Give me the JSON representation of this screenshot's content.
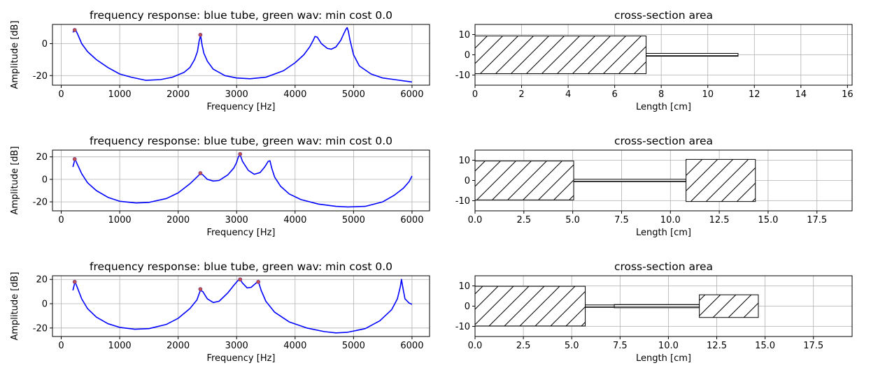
{
  "chart_data": [
    {
      "type": "line",
      "title": "frequency response: blue tube, green wav: min cost 0.0",
      "xlabel": "Frequency [Hz]",
      "ylabel": "Amplitude [dB]",
      "xlim": [
        -150,
        6300
      ],
      "ylim": [
        -26,
        12
      ],
      "xticks": [
        0,
        1000,
        2000,
        3000,
        4000,
        5000,
        6000
      ],
      "yticks": [
        -20,
        0
      ],
      "grid": true,
      "line_color": "#0000ff",
      "marker_color": "#c0504d",
      "series": [
        {
          "x": [
            200,
            240,
            280,
            350,
            450,
            600,
            800,
            1000,
            1200,
            1450,
            1700,
            1900,
            2100,
            2200,
            2280,
            2330,
            2360,
            2385,
            2410,
            2440,
            2500,
            2600,
            2800,
            3000,
            3230,
            3500,
            3800,
            4000,
            4150,
            4250,
            4310,
            4340,
            4380,
            4450,
            4550,
            4620,
            4700,
            4780,
            4830,
            4870,
            4890,
            4910,
            4940,
            5000,
            5100,
            5300,
            5500,
            5700,
            5900,
            6000
          ],
          "y": [
            7,
            9,
            6,
            0,
            -5,
            -10,
            -15,
            -19,
            -21,
            -23,
            -22.5,
            -21,
            -18,
            -15,
            -10,
            -5,
            2,
            5,
            -1,
            -6,
            -11,
            -16,
            -20,
            -21.5,
            -22,
            -21,
            -17,
            -12,
            -7,
            -2,
            2,
            4.5,
            4,
            0,
            -3,
            -3.5,
            -2,
            2,
            6,
            9,
            10,
            8,
            2,
            -7,
            -14,
            -19,
            -21.5,
            -22.5,
            -23.5,
            -24
          ]
        }
      ],
      "markers": {
        "x": [
          230,
          2380
        ],
        "y": [
          8.5,
          5.5
        ]
      }
    },
    {
      "type": "bar",
      "title": "cross-section area",
      "xlabel": "Length [cm]",
      "ylabel": "",
      "xlim": [
        0,
        16.2
      ],
      "ylim": [
        -15,
        15
      ],
      "xticks": [
        0,
        2,
        4,
        6,
        8,
        10,
        12,
        14,
        16
      ],
      "yticks": [
        -10,
        0,
        10
      ],
      "grid": true,
      "segments": [
        {
          "x0": 0,
          "x1": 7.35,
          "half_height": 9.3,
          "hatch": "/"
        },
        {
          "x0": 7.35,
          "x1": 11.3,
          "half_height": 0.7,
          "hatch": "-"
        }
      ]
    },
    {
      "type": "line",
      "title": "frequency response: blue tube, green wav: min cost 0.0",
      "xlabel": "Frequency [Hz]",
      "ylabel": "Amplitude [dB]",
      "xlim": [
        -150,
        6300
      ],
      "ylim": [
        -28,
        26
      ],
      "xticks": [
        0,
        1000,
        2000,
        3000,
        4000,
        5000,
        6000
      ],
      "yticks": [
        -20,
        0,
        20
      ],
      "grid": true,
      "line_color": "#0000ff",
      "marker_color": "#c0504d",
      "series": [
        {
          "x": [
            200,
            235,
            270,
            350,
            450,
            600,
            800,
            1000,
            1280,
            1500,
            1800,
            2000,
            2200,
            2320,
            2380,
            2420,
            2500,
            2600,
            2700,
            2850,
            2950,
            3000,
            3030,
            3060,
            3100,
            3200,
            3300,
            3400,
            3480,
            3540,
            3570,
            3600,
            3650,
            3750,
            3900,
            4100,
            4400,
            4700,
            4900,
            5200,
            5500,
            5700,
            5850,
            5950,
            6000
          ],
          "y": [
            11,
            18,
            14,
            5,
            -3,
            -10,
            -16,
            -19.5,
            -21,
            -20.5,
            -17,
            -12,
            -4,
            2,
            5,
            4,
            0,
            -1.5,
            -1,
            4,
            10,
            15,
            20,
            22,
            16,
            8,
            4.5,
            6,
            11,
            16,
            16.5,
            10,
            2,
            -6,
            -13,
            -18,
            -22,
            -24,
            -24.5,
            -24,
            -20,
            -14,
            -8,
            -2,
            3
          ]
        }
      ],
      "markers": {
        "x": [
          230,
          2380,
          3060
        ],
        "y": [
          18,
          5.5,
          22.5
        ]
      }
    },
    {
      "type": "bar",
      "title": "cross-section area",
      "xlabel": "Length [cm]",
      "ylabel": "",
      "xlim": [
        0,
        19.3
      ],
      "ylim": [
        -15,
        15
      ],
      "xticks": [
        0.0,
        2.5,
        5.0,
        7.5,
        10.0,
        12.5,
        15.0,
        17.5
      ],
      "yticks": [
        -10,
        0,
        10
      ],
      "grid": true,
      "segments": [
        {
          "x0": 0,
          "x1": 5.05,
          "half_height": 9.6,
          "hatch": "/"
        },
        {
          "x0": 5.05,
          "x1": 10.8,
          "half_height": 0.6,
          "hatch": "-"
        },
        {
          "x0": 10.8,
          "x1": 14.35,
          "half_height": 10.4,
          "hatch": "/"
        }
      ]
    },
    {
      "type": "line",
      "title": "frequency response: blue tube, green wav: min cost 0.0",
      "xlabel": "Frequency [Hz]",
      "ylabel": "Amplitude [dB]",
      "xlim": [
        -150,
        6300
      ],
      "ylim": [
        -27,
        23
      ],
      "xticks": [
        0,
        1000,
        2000,
        3000,
        4000,
        5000,
        6000
      ],
      "yticks": [
        -20,
        0,
        20
      ],
      "grid": true,
      "line_color": "#0000ff",
      "marker_color": "#c0504d",
      "series": [
        {
          "x": [
            200,
            235,
            270,
            350,
            450,
            600,
            800,
            1000,
            1260,
            1500,
            1800,
            2000,
            2200,
            2320,
            2380,
            2420,
            2500,
            2600,
            2700,
            2850,
            2950,
            3020,
            3060,
            3100,
            3180,
            3250,
            3320,
            3360,
            3380,
            3420,
            3500,
            3650,
            3900,
            4200,
            4500,
            4700,
            4900,
            5200,
            5450,
            5650,
            5750,
            5800,
            5820,
            5840,
            5880,
            5950,
            6000
          ],
          "y": [
            11,
            18,
            14,
            4,
            -4,
            -11,
            -16.5,
            -19.5,
            -21,
            -20.5,
            -17,
            -12,
            -4,
            3,
            11,
            10,
            4,
            1,
            2,
            9,
            15,
            19,
            20,
            17,
            13,
            13.5,
            16.5,
            18,
            17,
            11,
            2,
            -7,
            -15,
            -20,
            -23,
            -24,
            -23.5,
            -20.5,
            -14,
            -5,
            4,
            14,
            20,
            14,
            4,
            0.5,
            -0.5
          ]
        }
      ],
      "markers": {
        "x": [
          230,
          2380,
          3060,
          3370
        ],
        "y": [
          18,
          12,
          20,
          18
        ]
      }
    },
    {
      "type": "bar",
      "title": "cross-section area",
      "xlabel": "Length [cm]",
      "ylabel": "",
      "xlim": [
        0,
        19.5
      ],
      "ylim": [
        -15,
        15
      ],
      "xticks": [
        0.0,
        2.5,
        5.0,
        7.5,
        10.0,
        12.5,
        15.0,
        17.5
      ],
      "yticks": [
        -10,
        0,
        10
      ],
      "grid": true,
      "segments": [
        {
          "x0": 0,
          "x1": 5.7,
          "half_height": 9.8,
          "hatch": "/"
        },
        {
          "x0": 5.7,
          "x1": 7.2,
          "half_height": 0.6,
          "hatch": "-"
        },
        {
          "x0": 7.2,
          "x1": 11.6,
          "half_height": 0.8,
          "hatch": "-"
        },
        {
          "x0": 11.6,
          "x1": 14.65,
          "half_height": 5.6,
          "hatch": "/"
        }
      ]
    }
  ]
}
